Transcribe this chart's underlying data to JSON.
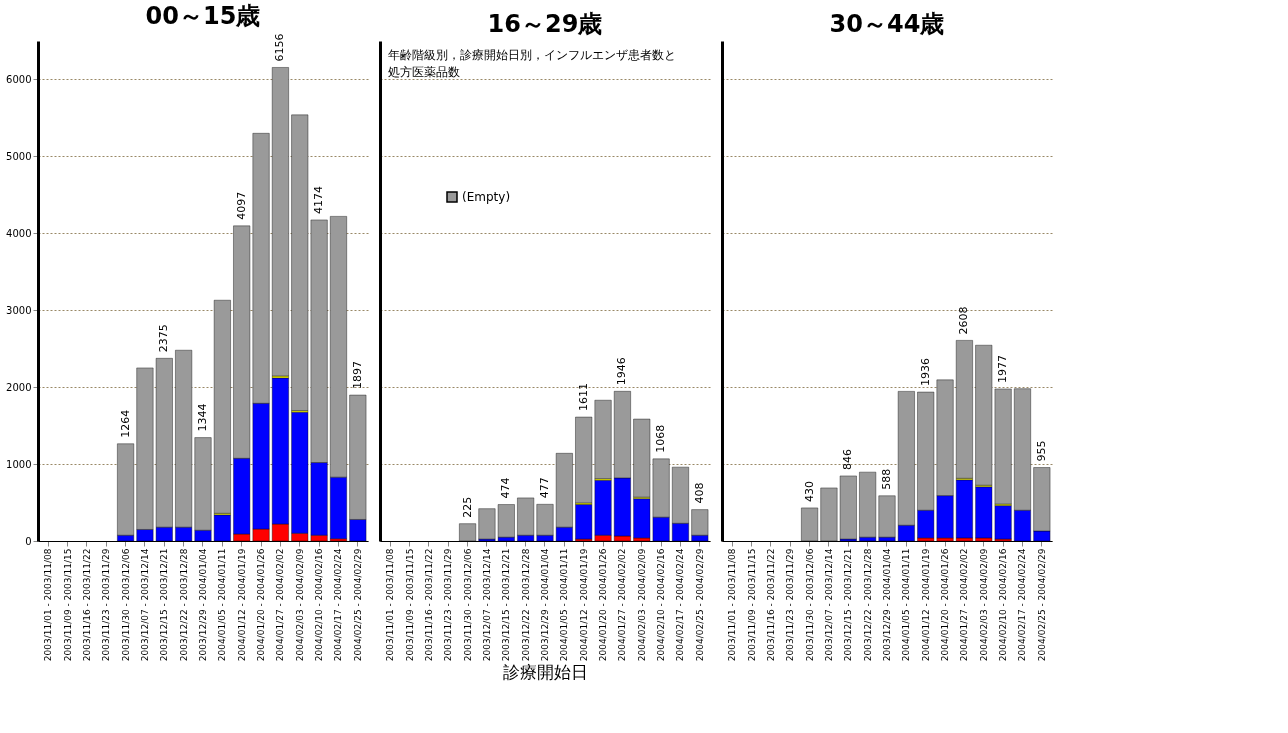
{
  "chart_data": [
    {
      "type": "bar",
      "title": "00～15歳",
      "stacked": true,
      "grid": "y",
      "ylim": [
        0,
        6500
      ],
      "yticks": [
        0,
        1000,
        2000,
        3000,
        4000,
        5000,
        6000
      ],
      "categories": [
        "2003/11/01 - 2003/11/08",
        "2003/11/09 - 2003/11/15",
        "2003/11/16 - 2003/11/22",
        "2003/11/23 - 2003/11/29",
        "2003/11/30 - 2003/12/06",
        "2003/12/07 - 2003/12/14",
        "2003/12/15 - 2003/12/21",
        "2003/12/22 - 2003/12/28",
        "2003/12/29 - 2004/01/04",
        "2004/01/05 - 2004/01/11",
        "2004/01/12 - 2004/01/19",
        "2004/01/20 - 2004/01/26",
        "2004/01/27 - 2004/02/02",
        "2004/02/03 - 2004/02/09",
        "2004/02/10 - 2004/02/16",
        "2004/02/17 - 2004/02/24",
        "2004/02/25 - 2004/02/29"
      ],
      "series": [
        {
          "color": "#ff0000",
          "values": [
            null,
            null,
            null,
            null,
            null,
            null,
            null,
            null,
            null,
            null,
            90,
            155,
            220,
            100,
            75,
            30,
            null
          ]
        },
        {
          "color": "#0000ff",
          "values": [
            null,
            null,
            null,
            null,
            75,
            150,
            180,
            180,
            140,
            340,
            985,
            1635,
            1900,
            1575,
            945,
            800,
            280
          ]
        },
        {
          "color": "#ffff00",
          "values": [
            null,
            null,
            null,
            null,
            null,
            null,
            null,
            null,
            null,
            20,
            null,
            null,
            25,
            20,
            null,
            null,
            null
          ]
        },
        {
          "color": "#9a9a9a",
          "values": [
            null,
            null,
            null,
            null,
            1189,
            2100,
            2195,
            2300,
            1204,
            2770,
            3022,
            3510,
            4011,
            3845,
            3154,
            3390,
            1617
          ]
        }
      ],
      "totals": [
        null,
        null,
        null,
        null,
        "1264",
        null,
        "2375",
        null,
        "1344",
        null,
        "4097",
        null,
        "6156",
        null,
        "4174",
        null,
        "1897"
      ]
    },
    {
      "type": "bar",
      "title": "16～29歳",
      "stacked": true,
      "grid": "y",
      "ylim": [
        0,
        6500
      ],
      "yticks": [
        0,
        1000,
        2000,
        3000,
        4000,
        5000,
        6000
      ],
      "tick_labels": "x",
      "xlabel": "診療開始日",
      "legend": "top",
      "annotations": [
        "年齢階級別，診療開始日別，インフルエンザ患者数と",
        "処方医薬品数"
      ],
      "categories": [
        "2003/11/01 - 2003/11/08",
        "2003/11/09 - 2003/11/15",
        "2003/11/16 - 2003/11/22",
        "2003/11/23 - 2003/11/29",
        "2003/11/30 - 2003/12/06",
        "2003/12/07 - 2003/12/14",
        "2003/12/15 - 2003/12/21",
        "2003/12/22 - 2003/12/28",
        "2003/12/29 - 2004/01/04",
        "2004/01/05 - 2004/01/11",
        "2004/01/12 - 2004/01/19",
        "2004/01/20 - 2004/01/26",
        "2004/01/27 - 2004/02/02",
        "2004/02/03 - 2004/02/09",
        "2004/02/10 - 2004/02/16",
        "2004/02/17 - 2004/02/24",
        "2004/02/25 - 2004/02/29"
      ],
      "series": [
        {
          "color": "#ff0000",
          "values": [
            null,
            null,
            null,
            null,
            null,
            null,
            null,
            null,
            null,
            null,
            25,
            75,
            65,
            40,
            null,
            null,
            null
          ]
        },
        {
          "color": "#0000ff",
          "values": [
            null,
            null,
            null,
            null,
            null,
            25,
            50,
            75,
            75,
            180,
            450,
            715,
            755,
            510,
            310,
            230,
            75
          ]
        },
        {
          "color": "#ffff00",
          "values": [
            null,
            null,
            null,
            null,
            null,
            null,
            null,
            null,
            null,
            null,
            20,
            20,
            null,
            20,
            null,
            null,
            null
          ]
        },
        {
          "name": "(Empty)",
          "color": "#9a9a9a",
          "values": [
            null,
            null,
            null,
            null,
            225,
            395,
            424,
            485,
            402,
            960,
            1116,
            1020,
            1126,
            1015,
            758,
            730,
            333
          ]
        }
      ],
      "totals": [
        null,
        null,
        null,
        null,
        "225",
        null,
        "474",
        null,
        "477",
        null,
        "1611",
        null,
        "1946",
        null,
        "1068",
        null,
        "408"
      ]
    },
    {
      "type": "bar",
      "title": "30～44歳",
      "stacked": true,
      "grid": "y",
      "ylim": [
        0,
        6500
      ],
      "yticks": [
        0,
        1000,
        2000,
        3000,
        4000,
        5000,
        6000
      ],
      "tick_labels": "x",
      "categories": [
        "2003/11/01 - 2003/11/08",
        "2003/11/09 - 2003/11/15",
        "2003/11/16 - 2003/11/22",
        "2003/11/23 - 2003/11/29",
        "2003/11/30 - 2003/12/06",
        "2003/12/07 - 2003/12/14",
        "2003/12/15 - 2003/12/21",
        "2003/12/22 - 2003/12/28",
        "2003/12/29 - 2004/01/04",
        "2004/01/05 - 2004/01/11",
        "2004/01/12 - 2004/01/19",
        "2004/01/20 - 2004/01/26",
        "2004/01/27 - 2004/02/02",
        "2004/02/03 - 2004/02/09",
        "2004/02/10 - 2004/02/16",
        "2004/02/17 - 2004/02/24",
        "2004/02/25 - 2004/02/29"
      ],
      "series": [
        {
          "color": "#ff0000",
          "values": [
            null,
            null,
            null,
            null,
            null,
            null,
            null,
            null,
            null,
            null,
            40,
            40,
            40,
            40,
            25,
            null,
            null
          ]
        },
        {
          "color": "#0000ff",
          "values": [
            null,
            null,
            null,
            null,
            null,
            null,
            25,
            50,
            50,
            205,
            360,
            550,
            755,
            665,
            435,
            400,
            130
          ]
        },
        {
          "color": "#ffff00",
          "values": [
            null,
            null,
            null,
            null,
            null,
            null,
            null,
            null,
            null,
            null,
            null,
            null,
            20,
            20,
            20,
            null,
            null
          ]
        },
        {
          "color": "#9a9a9a",
          "values": [
            null,
            null,
            null,
            null,
            430,
            690,
            821,
            845,
            538,
            1740,
            1536,
            1505,
            1793,
            1820,
            1497,
            1580,
            825
          ]
        }
      ],
      "totals": [
        null,
        null,
        null,
        null,
        "430",
        null,
        "846",
        null,
        "588",
        null,
        "1936",
        null,
        "2608",
        null,
        "1977",
        null,
        "955"
      ]
    }
  ]
}
